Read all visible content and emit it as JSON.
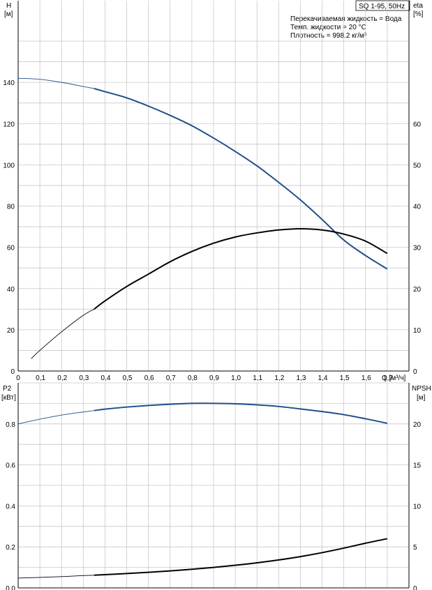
{
  "header": {
    "model": "SQ 1-95, 50Hz",
    "left_axis_top": "H",
    "left_axis_top_unit": "[м]",
    "right_axis_top": "eta",
    "right_axis_top_unit": "[%]",
    "left_axis_bottom": "P2",
    "left_axis_bottom_unit": "[кВт]",
    "right_axis_bottom": "NPSH",
    "right_axis_bottom_unit": "[м]",
    "x_axis_label": "Q [м³/ч]"
  },
  "info": {
    "line1": "Перекачиваемая жидкость = Вода",
    "line2": "Темп. жидкости = 20 °C",
    "line3": "Плотность = 998.2 кг/м³"
  },
  "colors": {
    "grid": "#c8c8c8",
    "axis": "#000000",
    "head_curve": "#1f4e8c",
    "power_curve": "#1f4e8c",
    "efficiency_curve": "#000000",
    "npsh_curve": "#000000"
  },
  "chart_data": [
    {
      "type": "line",
      "xlim": [
        0,
        1.8
      ],
      "ylim": [
        0,
        160
      ],
      "y2lim": [
        0,
        80
      ],
      "x_ticks": [
        "0",
        "0,1",
        "0,2",
        "0,3",
        "0,4",
        "0,5",
        "0,6",
        "0,7",
        "0,8",
        "0,9",
        "1,0",
        "1,1",
        "1,2",
        "1,3",
        "1,4",
        "1,5",
        "1,6",
        "1,7"
      ],
      "y_ticks": [
        "0",
        "20",
        "40",
        "60",
        "80",
        "100",
        "120",
        "140"
      ],
      "y2_ticks": [
        "0",
        "10",
        "20",
        "30",
        "40",
        "50",
        "60"
      ],
      "grid": true,
      "series": [
        {
          "name": "H",
          "axis": "left",
          "x": [
            0,
            0.1,
            0.2,
            0.3,
            0.35,
            0.4,
            0.5,
            0.6,
            0.7,
            0.8,
            0.9,
            1.0,
            1.1,
            1.2,
            1.3,
            1.4,
            1.5,
            1.6,
            1.7
          ],
          "y": [
            142,
            141.5,
            140,
            138,
            137,
            135.5,
            132.5,
            128.5,
            124,
            119,
            113,
            106.5,
            99.5,
            91.5,
            83,
            73.5,
            63.5,
            56,
            49.5
          ],
          "thin_until": 0.34
        },
        {
          "name": "eta",
          "axis": "right",
          "x": [
            0.06,
            0.1,
            0.2,
            0.3,
            0.35,
            0.4,
            0.5,
            0.6,
            0.7,
            0.8,
            0.9,
            1.0,
            1.1,
            1.2,
            1.3,
            1.4,
            1.5,
            1.6,
            1.7
          ],
          "y": [
            3,
            5,
            9.5,
            13.5,
            15,
            17,
            20.5,
            23.5,
            26.5,
            29,
            31,
            32.5,
            33.5,
            34.2,
            34.5,
            34.2,
            33.2,
            31.5,
            28.5
          ],
          "thin_until": 0.34
        }
      ]
    },
    {
      "type": "line",
      "xlim": [
        0,
        1.8
      ],
      "ylim": [
        0,
        1.0
      ],
      "y2lim": [
        0,
        25
      ],
      "y_ticks": [
        "0.0",
        "0.2",
        "0.4",
        "0.6",
        "0.8"
      ],
      "y2_ticks": [
        "0",
        "5",
        "10",
        "15",
        "20"
      ],
      "grid": true,
      "series": [
        {
          "name": "P2",
          "axis": "left",
          "x": [
            0,
            0.1,
            0.2,
            0.3,
            0.35,
            0.4,
            0.5,
            0.6,
            0.7,
            0.8,
            0.9,
            1.0,
            1.1,
            1.2,
            1.3,
            1.4,
            1.5,
            1.6,
            1.7
          ],
          "y": [
            0.8,
            0.823,
            0.843,
            0.858,
            0.865,
            0.872,
            0.882,
            0.89,
            0.896,
            0.9,
            0.9,
            0.898,
            0.893,
            0.885,
            0.873,
            0.86,
            0.845,
            0.825,
            0.803
          ],
          "thin_until": 0.34
        },
        {
          "name": "NPSH",
          "axis": "right",
          "x": [
            0,
            0.1,
            0.2,
            0.3,
            0.35,
            0.4,
            0.5,
            0.6,
            0.7,
            0.8,
            0.9,
            1.0,
            1.1,
            1.2,
            1.3,
            1.4,
            1.5,
            1.6,
            1.7
          ],
          "y": [
            1.2,
            1.28,
            1.38,
            1.5,
            1.55,
            1.62,
            1.75,
            1.9,
            2.07,
            2.27,
            2.5,
            2.76,
            3.06,
            3.41,
            3.82,
            4.3,
            4.85,
            5.45,
            6.0
          ],
          "thin_until": 0.34
        }
      ]
    }
  ]
}
